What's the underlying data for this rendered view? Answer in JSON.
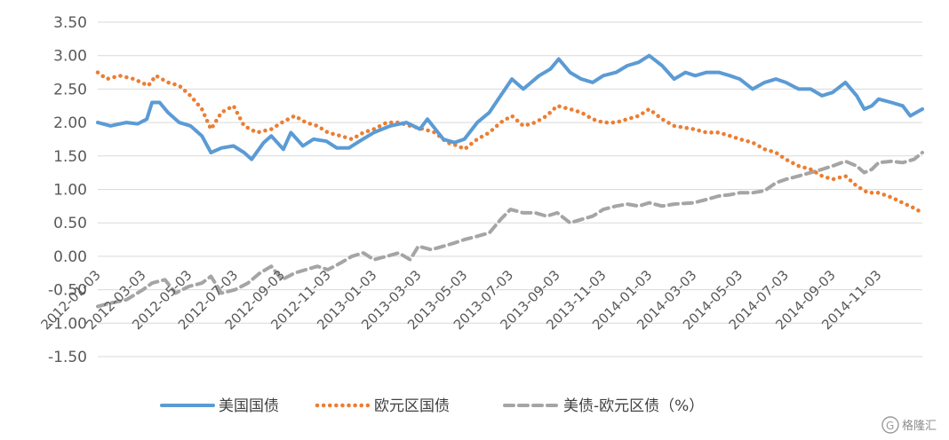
{
  "chart_data": {
    "type": "line",
    "title": "",
    "xlabel": "",
    "ylabel": "",
    "ylim": [
      -1.5,
      3.5
    ],
    "y_ticks": [
      "3.50",
      "3.00",
      "2.50",
      "2.00",
      "1.50",
      "1.00",
      "0.50",
      "0.00",
      "-0.50",
      "-1.00",
      "-1.50"
    ],
    "x_ticks": [
      "2012-01-03",
      "2012-03-03",
      "2012-05-03",
      "2012-07-03",
      "2012-09-03",
      "2012-11-03",
      "2013-01-03",
      "2013-03-03",
      "2013-05-03",
      "2013-07-03",
      "2013-09-03",
      "2013-11-03",
      "2014-01-03",
      "2014-03-03",
      "2014-05-03",
      "2014-07-03",
      "2014-09-03",
      "2014-11-03"
    ],
    "xlim": [
      "2012-01-03",
      "2014-12-31"
    ],
    "grid": "horizontal",
    "legend_position": "bottom",
    "series": [
      {
        "name": "美国国债",
        "color": "#5B9BD5",
        "style": "solid",
        "points": [
          [
            "2012-01-03",
            2.0
          ],
          [
            "2012-01-20",
            1.95
          ],
          [
            "2012-02-10",
            2.0
          ],
          [
            "2012-02-25",
            1.98
          ],
          [
            "2012-03-08",
            2.05
          ],
          [
            "2012-03-15",
            2.3
          ],
          [
            "2012-03-25",
            2.3
          ],
          [
            "2012-04-05",
            2.15
          ],
          [
            "2012-04-20",
            2.0
          ],
          [
            "2012-05-05",
            1.95
          ],
          [
            "2012-05-20",
            1.8
          ],
          [
            "2012-06-01",
            1.55
          ],
          [
            "2012-06-15",
            1.62
          ],
          [
            "2012-07-01",
            1.65
          ],
          [
            "2012-07-15",
            1.55
          ],
          [
            "2012-07-25",
            1.45
          ],
          [
            "2012-08-10",
            1.7
          ],
          [
            "2012-08-20",
            1.8
          ],
          [
            "2012-09-05",
            1.6
          ],
          [
            "2012-09-15",
            1.85
          ],
          [
            "2012-10-01",
            1.65
          ],
          [
            "2012-10-15",
            1.75
          ],
          [
            "2012-11-01",
            1.72
          ],
          [
            "2012-11-15",
            1.62
          ],
          [
            "2012-12-01",
            1.62
          ],
          [
            "2012-12-15",
            1.72
          ],
          [
            "2013-01-03",
            1.85
          ],
          [
            "2013-01-25",
            1.95
          ],
          [
            "2013-02-15",
            2.0
          ],
          [
            "2013-03-05",
            1.9
          ],
          [
            "2013-03-15",
            2.05
          ],
          [
            "2013-04-05",
            1.75
          ],
          [
            "2013-04-20",
            1.7
          ],
          [
            "2013-05-03",
            1.75
          ],
          [
            "2013-05-20",
            2.0
          ],
          [
            "2013-06-05",
            2.15
          ],
          [
            "2013-06-20",
            2.4
          ],
          [
            "2013-07-05",
            2.65
          ],
          [
            "2013-07-20",
            2.5
          ],
          [
            "2013-08-10",
            2.7
          ],
          [
            "2013-08-25",
            2.8
          ],
          [
            "2013-09-05",
            2.95
          ],
          [
            "2013-09-20",
            2.75
          ],
          [
            "2013-10-05",
            2.65
          ],
          [
            "2013-10-20",
            2.6
          ],
          [
            "2013-11-03",
            2.7
          ],
          [
            "2013-11-20",
            2.75
          ],
          [
            "2013-12-05",
            2.85
          ],
          [
            "2013-12-20",
            2.9
          ],
          [
            "2014-01-03",
            3.0
          ],
          [
            "2014-01-20",
            2.85
          ],
          [
            "2014-02-05",
            2.65
          ],
          [
            "2014-02-20",
            2.75
          ],
          [
            "2014-03-05",
            2.7
          ],
          [
            "2014-03-20",
            2.75
          ],
          [
            "2014-04-05",
            2.75
          ],
          [
            "2014-04-20",
            2.7
          ],
          [
            "2014-05-03",
            2.65
          ],
          [
            "2014-05-20",
            2.5
          ],
          [
            "2014-06-05",
            2.6
          ],
          [
            "2014-06-20",
            2.65
          ],
          [
            "2014-07-03",
            2.6
          ],
          [
            "2014-07-20",
            2.5
          ],
          [
            "2014-08-05",
            2.5
          ],
          [
            "2014-08-20",
            2.4
          ],
          [
            "2014-09-03",
            2.45
          ],
          [
            "2014-09-20",
            2.6
          ],
          [
            "2014-10-05",
            2.4
          ],
          [
            "2014-10-15",
            2.2
          ],
          [
            "2014-10-25",
            2.25
          ],
          [
            "2014-11-03",
            2.35
          ],
          [
            "2014-11-20",
            2.3
          ],
          [
            "2014-12-05",
            2.25
          ],
          [
            "2014-12-15",
            2.1
          ],
          [
            "2014-12-31",
            2.2
          ]
        ]
      },
      {
        "name": "欧元区国债",
        "color": "#ED7D31",
        "style": "dotted",
        "points": [
          [
            "2012-01-03",
            2.75
          ],
          [
            "2012-01-15",
            2.65
          ],
          [
            "2012-02-01",
            2.7
          ],
          [
            "2012-02-20",
            2.65
          ],
          [
            "2012-03-10",
            2.55
          ],
          [
            "2012-03-20",
            2.7
          ],
          [
            "2012-04-05",
            2.6
          ],
          [
            "2012-04-20",
            2.55
          ],
          [
            "2012-05-05",
            2.4
          ],
          [
            "2012-05-20",
            2.2
          ],
          [
            "2012-06-01",
            1.9
          ],
          [
            "2012-06-15",
            2.15
          ],
          [
            "2012-07-01",
            2.25
          ],
          [
            "2012-07-15",
            1.95
          ],
          [
            "2012-08-01",
            1.85
          ],
          [
            "2012-08-20",
            1.9
          ],
          [
            "2012-09-03",
            2.0
          ],
          [
            "2012-09-20",
            2.1
          ],
          [
            "2012-10-05",
            2.0
          ],
          [
            "2012-10-20",
            1.95
          ],
          [
            "2012-11-03",
            1.85
          ],
          [
            "2012-11-20",
            1.8
          ],
          [
            "2012-12-05",
            1.75
          ],
          [
            "2012-12-20",
            1.85
          ],
          [
            "2013-01-03",
            1.9
          ],
          [
            "2013-01-20",
            2.0
          ],
          [
            "2013-02-05",
            2.0
          ],
          [
            "2013-02-20",
            1.95
          ],
          [
            "2013-03-10",
            1.9
          ],
          [
            "2013-03-25",
            1.85
          ],
          [
            "2013-04-10",
            1.7
          ],
          [
            "2013-04-25",
            1.65
          ],
          [
            "2013-05-03",
            1.6
          ],
          [
            "2013-05-20",
            1.75
          ],
          [
            "2013-06-05",
            1.85
          ],
          [
            "2013-06-20",
            2.0
          ],
          [
            "2013-07-05",
            2.1
          ],
          [
            "2013-07-20",
            1.95
          ],
          [
            "2013-08-05",
            2.0
          ],
          [
            "2013-08-20",
            2.1
          ],
          [
            "2013-09-03",
            2.25
          ],
          [
            "2013-09-20",
            2.2
          ],
          [
            "2013-10-05",
            2.15
          ],
          [
            "2013-10-20",
            2.05
          ],
          [
            "2013-11-03",
            2.0
          ],
          [
            "2013-11-20",
            2.0
          ],
          [
            "2013-12-05",
            2.05
          ],
          [
            "2013-12-20",
            2.1
          ],
          [
            "2014-01-03",
            2.2
          ],
          [
            "2014-01-20",
            2.05
          ],
          [
            "2014-02-05",
            1.95
          ],
          [
            "2014-03-03",
            1.9
          ],
          [
            "2014-03-20",
            1.85
          ],
          [
            "2014-04-05",
            1.85
          ],
          [
            "2014-04-20",
            1.8
          ],
          [
            "2014-05-03",
            1.75
          ],
          [
            "2014-05-20",
            1.7
          ],
          [
            "2014-06-05",
            1.6
          ],
          [
            "2014-06-20",
            1.55
          ],
          [
            "2014-07-03",
            1.45
          ],
          [
            "2014-07-20",
            1.35
          ],
          [
            "2014-08-05",
            1.3
          ],
          [
            "2014-08-20",
            1.2
          ],
          [
            "2014-09-03",
            1.15
          ],
          [
            "2014-09-20",
            1.2
          ],
          [
            "2014-10-05",
            1.05
          ],
          [
            "2014-10-20",
            0.95
          ],
          [
            "2014-11-03",
            0.95
          ],
          [
            "2014-11-20",
            0.88
          ],
          [
            "2014-12-05",
            0.8
          ],
          [
            "2014-12-20",
            0.72
          ],
          [
            "2014-12-31",
            0.65
          ]
        ]
      },
      {
        "name": "美债-欧元区债（%）",
        "color": "#A5A5A5",
        "style": "dashed",
        "points": [
          [
            "2012-01-03",
            -0.75
          ],
          [
            "2012-01-20",
            -0.7
          ],
          [
            "2012-02-10",
            -0.65
          ],
          [
            "2012-03-03",
            -0.5
          ],
          [
            "2012-03-15",
            -0.4
          ],
          [
            "2012-04-01",
            -0.35
          ],
          [
            "2012-04-15",
            -0.55
          ],
          [
            "2012-05-03",
            -0.45
          ],
          [
            "2012-05-20",
            -0.4
          ],
          [
            "2012-06-01",
            -0.3
          ],
          [
            "2012-06-15",
            -0.55
          ],
          [
            "2012-07-03",
            -0.5
          ],
          [
            "2012-07-20",
            -0.4
          ],
          [
            "2012-08-05",
            -0.25
          ],
          [
            "2012-08-20",
            -0.15
          ],
          [
            "2012-09-03",
            -0.35
          ],
          [
            "2012-09-20",
            -0.25
          ],
          [
            "2012-10-05",
            -0.2
          ],
          [
            "2012-10-20",
            -0.15
          ],
          [
            "2012-11-03",
            -0.2
          ],
          [
            "2012-11-20",
            -0.1
          ],
          [
            "2012-12-05",
            0.0
          ],
          [
            "2012-12-20",
            0.05
          ],
          [
            "2013-01-03",
            -0.05
          ],
          [
            "2013-01-20",
            0.0
          ],
          [
            "2013-02-05",
            0.05
          ],
          [
            "2013-02-20",
            -0.05
          ],
          [
            "2013-03-03",
            0.15
          ],
          [
            "2013-03-20",
            0.1
          ],
          [
            "2013-04-05",
            0.15
          ],
          [
            "2013-04-20",
            0.2
          ],
          [
            "2013-05-03",
            0.25
          ],
          [
            "2013-05-20",
            0.3
          ],
          [
            "2013-06-05",
            0.35
          ],
          [
            "2013-06-20",
            0.55
          ],
          [
            "2013-07-03",
            0.7
          ],
          [
            "2013-07-20",
            0.65
          ],
          [
            "2013-08-05",
            0.65
          ],
          [
            "2013-08-20",
            0.6
          ],
          [
            "2013-09-03",
            0.65
          ],
          [
            "2013-09-20",
            0.5
          ],
          [
            "2013-10-05",
            0.55
          ],
          [
            "2013-10-20",
            0.6
          ],
          [
            "2013-11-03",
            0.7
          ],
          [
            "2013-11-20",
            0.75
          ],
          [
            "2013-12-05",
            0.78
          ],
          [
            "2013-12-20",
            0.75
          ],
          [
            "2014-01-03",
            0.8
          ],
          [
            "2014-01-20",
            0.75
          ],
          [
            "2014-02-05",
            0.78
          ],
          [
            "2014-03-03",
            0.8
          ],
          [
            "2014-03-20",
            0.85
          ],
          [
            "2014-04-05",
            0.9
          ],
          [
            "2014-04-20",
            0.92
          ],
          [
            "2014-05-03",
            0.95
          ],
          [
            "2014-05-20",
            0.95
          ],
          [
            "2014-06-05",
            0.98
          ],
          [
            "2014-06-20",
            1.1
          ],
          [
            "2014-07-03",
            1.15
          ],
          [
            "2014-07-20",
            1.2
          ],
          [
            "2014-08-05",
            1.25
          ],
          [
            "2014-08-20",
            1.3
          ],
          [
            "2014-09-03",
            1.35
          ],
          [
            "2014-09-20",
            1.42
          ],
          [
            "2014-10-05",
            1.35
          ],
          [
            "2014-10-15",
            1.25
          ],
          [
            "2014-10-25",
            1.3
          ],
          [
            "2014-11-03",
            1.4
          ],
          [
            "2014-11-20",
            1.42
          ],
          [
            "2014-12-05",
            1.4
          ],
          [
            "2014-12-20",
            1.45
          ],
          [
            "2014-12-31",
            1.55
          ]
        ]
      }
    ]
  },
  "watermark": {
    "text": "格隆汇"
  }
}
